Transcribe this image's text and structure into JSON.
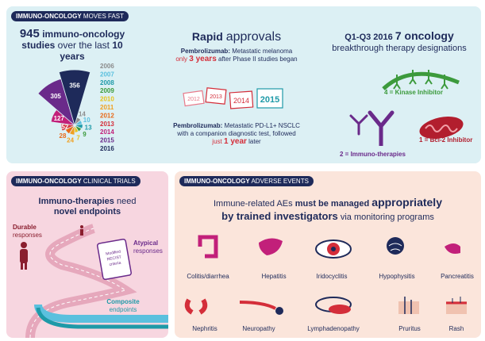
{
  "chart_data": {
    "type": "rose",
    "categories": [
      "2006",
      "2007",
      "2008",
      "2009",
      "2010",
      "2011",
      "2012",
      "2013",
      "2014",
      "2015",
      "2016"
    ],
    "values": [
      14,
      10,
      13,
      9,
      7,
      24,
      28,
      52,
      127,
      305,
      356
    ],
    "colors": [
      "#8c8c8c",
      "#5bc0de",
      "#1e9aa8",
      "#3c9a3c",
      "#e8c21a",
      "#f0a020",
      "#e86a1a",
      "#d42e3a",
      "#c2207a",
      "#6a2a8a",
      "#1e2a5a"
    ]
  },
  "fast": {
    "tag": [
      "IMMUNO-ONCOLOGY",
      "MOVES FAST"
    ],
    "studies": [
      "945",
      "immuno-oncology",
      "studies",
      "over the last",
      "10",
      "years"
    ],
    "approvals": {
      "title": [
        "Rapid",
        "approvals"
      ],
      "first": [
        "Pembrolizumab:",
        "Metastatic melanoma",
        "only",
        "3 years",
        "after Phase II studies began"
      ],
      "calendars": [
        "2012",
        "2013",
        "2014",
        "2015"
      ],
      "second": [
        "Pembrolizumab:",
        "Metastatic PD-L1+ NSCLC",
        "with a companion diagnostic test, followed",
        "just",
        "1 year",
        "later"
      ]
    },
    "designations": {
      "title": [
        "Q1-Q3 2016",
        "7 oncology",
        "breakthrough therapy designations"
      ],
      "kinase": "4 = Kinase Inhibitor",
      "immuno": "2 = Immuno-therapies",
      "bcl2": "1 = Bcl-2 Inhibitor"
    }
  },
  "trials": {
    "tag": [
      "IMMUNO-ONCOLOGY",
      "CLINICAL TRIALS"
    ],
    "headline": [
      "Immuno-therapies",
      "need",
      "novel endpoints"
    ],
    "durable": [
      "Durable",
      "responses"
    ],
    "atypical": [
      "Atypical",
      "responses"
    ],
    "clipboard": [
      "Modified",
      "RECIST",
      "criteria"
    ],
    "composite": [
      "Composite",
      "endpoints"
    ]
  },
  "adverse": {
    "tag": [
      "IMMUNO-ONCOLOGY",
      "ADVERSE EVENTS"
    ],
    "headline": [
      "Immune-related AEs",
      "must be managed",
      "appropriately",
      "by trained investigators",
      "via monitoring programs"
    ],
    "events": [
      "Colitis/diarrhea",
      "Hepatitis",
      "Iridocyclitis",
      "Hypophysitis",
      "Pancreatitis",
      "Nephritis",
      "Neuropathy",
      "Lymphadenopathy",
      "Pruritus",
      "Rash"
    ]
  }
}
